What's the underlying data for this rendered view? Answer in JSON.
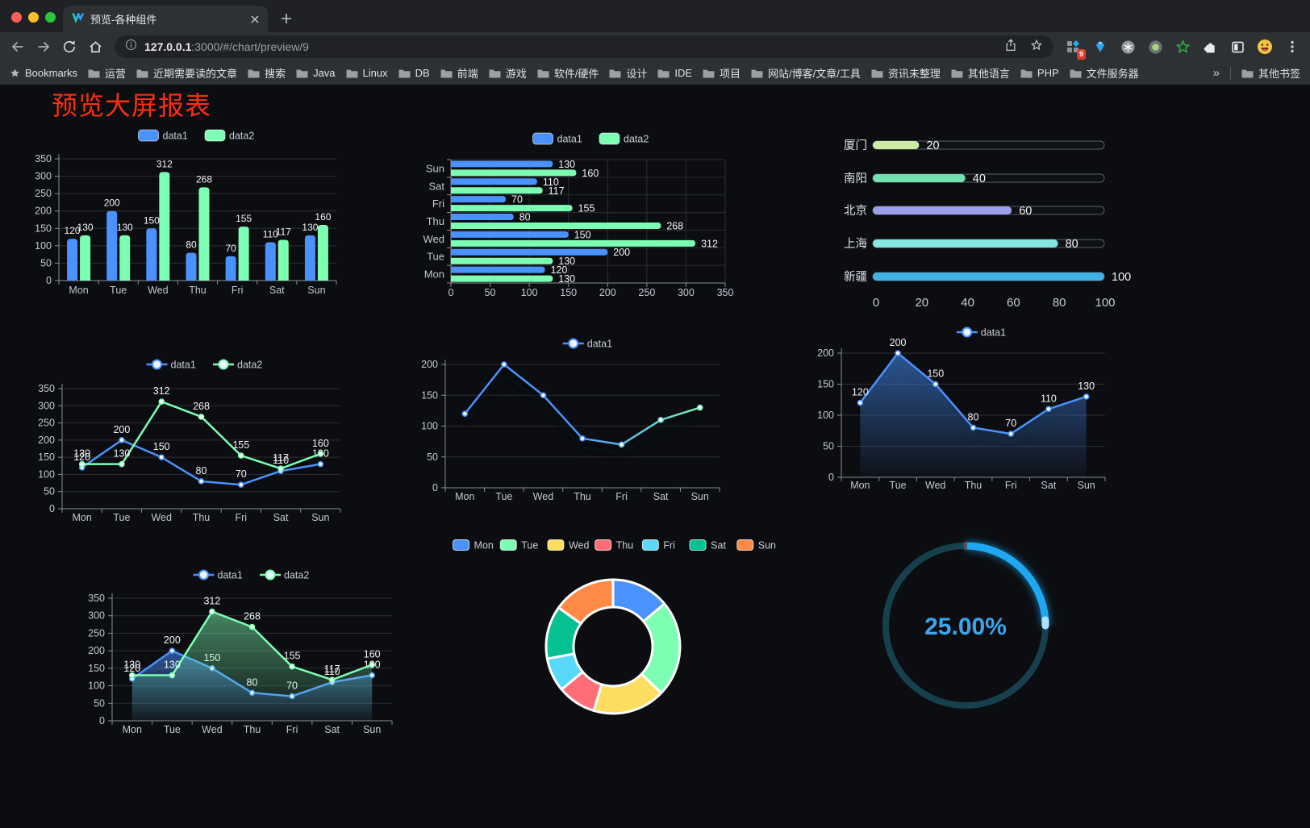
{
  "browser": {
    "tab": {
      "title": "预览-各种组件"
    },
    "url": {
      "host": "127.0.0.1",
      "rest": ":3000/#/chart/preview/9"
    },
    "extension_badge": "9",
    "bookmarks_label": "Bookmarks",
    "bookmark_folders": [
      "运营",
      "近期需要读的文章",
      "搜索",
      "Java",
      "Linux",
      "DB",
      "前端",
      "游戏",
      "软件/硬件",
      "设计",
      "IDE",
      "项目",
      "网站/博客/文章/工具",
      "资讯未整理",
      "其他语言",
      "PHP",
      "文件服务器"
    ],
    "bookmarks_overflow": "»",
    "other_bookmarks": "其他书签"
  },
  "page": {
    "title": "预览大屏报表",
    "title_color": "#fb2f0d",
    "background": "#0c0d11"
  },
  "chart_data": [
    {
      "id": "grouped-bar-chart",
      "type": "bar",
      "categories": [
        "Mon",
        "Tue",
        "Wed",
        "Thu",
        "Fri",
        "Sat",
        "Sun"
      ],
      "series": [
        {
          "name": "data1",
          "color": "#4992ff",
          "values": [
            120,
            200,
            150,
            80,
            70,
            110,
            130
          ]
        },
        {
          "name": "data2",
          "color": "#7cffb2",
          "values": [
            130,
            130,
            312,
            268,
            155,
            117,
            160
          ]
        }
      ],
      "ylim": [
        0,
        350
      ],
      "ystep": 50,
      "value_labels": true,
      "legend_position": "top",
      "grid": true
    },
    {
      "id": "horizontal-bar-chart",
      "type": "bar",
      "orientation": "horizontal",
      "categories_top_to_bottom": [
        "Sun",
        "Sat",
        "Fri",
        "Thu",
        "Wed",
        "Tue",
        "Mon"
      ],
      "series": [
        {
          "name": "data1",
          "color": "#4992ff",
          "values_top_to_bottom": [
            130,
            110,
            70,
            80,
            150,
            200,
            120
          ]
        },
        {
          "name": "data2",
          "color": "#7cffb2",
          "values_top_to_bottom": [
            160,
            117,
            155,
            268,
            312,
            130,
            130
          ]
        }
      ],
      "xlim": [
        0,
        350
      ],
      "xstep": 50,
      "value_labels": true,
      "legend_position": "top",
      "grid": true
    },
    {
      "id": "city-progress-bars",
      "type": "bar",
      "style": "progress",
      "items": [
        {
          "label": "厦门",
          "value": 20,
          "color": "#cdeaa5"
        },
        {
          "label": "南阳",
          "value": 40,
          "color": "#70e2b0"
        },
        {
          "label": "北京",
          "value": 60,
          "color": "#9b9fe9"
        },
        {
          "label": "上海",
          "value": 80,
          "color": "#86e6e2"
        },
        {
          "label": "新疆",
          "value": 100,
          "color": "#3fb2e6"
        }
      ],
      "xlim": [
        0,
        100
      ],
      "xticks": [
        0,
        20,
        40,
        60,
        80,
        100
      ],
      "value_labels": true
    },
    {
      "id": "two-series-line-chart",
      "type": "line",
      "categories": [
        "Mon",
        "Tue",
        "Wed",
        "Thu",
        "Fri",
        "Sat",
        "Sun"
      ],
      "series": [
        {
          "name": "data1",
          "color": "#4992ff",
          "values": [
            120,
            200,
            150,
            80,
            70,
            110,
            130
          ]
        },
        {
          "name": "data2",
          "color": "#7cffb2",
          "values": [
            130,
            130,
            312,
            268,
            155,
            117,
            160
          ]
        }
      ],
      "ylim": [
        0,
        350
      ],
      "ystep": 50,
      "value_labels": true,
      "legend_position": "top"
    },
    {
      "id": "gradient-line-chart",
      "type": "line",
      "categories": [
        "Mon",
        "Tue",
        "Wed",
        "Thu",
        "Fri",
        "Sat",
        "Sun"
      ],
      "series": [
        {
          "name": "data1",
          "color_gradient": [
            "#4992ff",
            "#7cffb2"
          ],
          "values": [
            120,
            200,
            150,
            80,
            70,
            110,
            130
          ]
        }
      ],
      "ylim": [
        0,
        200
      ],
      "ystep": 50,
      "value_labels": false,
      "line_shadow": true,
      "legend_position": "top"
    },
    {
      "id": "single-area-chart",
      "type": "area",
      "categories": [
        "Mon",
        "Tue",
        "Wed",
        "Thu",
        "Fri",
        "Sat",
        "Sun"
      ],
      "series": [
        {
          "name": "data1",
          "color": "#4992ff",
          "values": [
            120,
            200,
            150,
            80,
            70,
            110,
            130
          ]
        }
      ],
      "ylim": [
        0,
        200
      ],
      "ystep": 50,
      "value_labels": true,
      "line_shadow": true,
      "legend_position": "top"
    },
    {
      "id": "two-series-area-chart",
      "type": "area",
      "categories": [
        "Mon",
        "Tue",
        "Wed",
        "Thu",
        "Fri",
        "Sat",
        "Sun"
      ],
      "series": [
        {
          "name": "data1",
          "color": "#4992ff",
          "values": [
            120,
            200,
            150,
            80,
            70,
            110,
            130
          ]
        },
        {
          "name": "data2",
          "color": "#7cffb2",
          "values": [
            130,
            130,
            312,
            268,
            155,
            117,
            160
          ]
        }
      ],
      "ylim": [
        0,
        350
      ],
      "ystep": 50,
      "value_labels": true,
      "legend_position": "top"
    },
    {
      "id": "donut-chart",
      "type": "pie",
      "donut": true,
      "legend_position": "top",
      "slices": [
        {
          "label": "Mon",
          "value": 120,
          "color": "#4992ff"
        },
        {
          "label": "Tue",
          "value": 200,
          "color": "#7cffb2"
        },
        {
          "label": "Wed",
          "value": 150,
          "color": "#fddd60"
        },
        {
          "label": "Thu",
          "value": 80,
          "color": "#ff6e76"
        },
        {
          "label": "Fri",
          "value": 70,
          "color": "#58d9f9"
        },
        {
          "label": "Sat",
          "value": 110,
          "color": "#05c091"
        },
        {
          "label": "Sun",
          "value": 130,
          "color": "#ff8a45"
        }
      ]
    },
    {
      "id": "circular-gauge",
      "type": "gauge",
      "value": 25,
      "max": 100,
      "display": "25.00%",
      "progress_color": "#1fa8f2",
      "track_color": "#17404e",
      "text_color": "#3ba6ee"
    }
  ]
}
